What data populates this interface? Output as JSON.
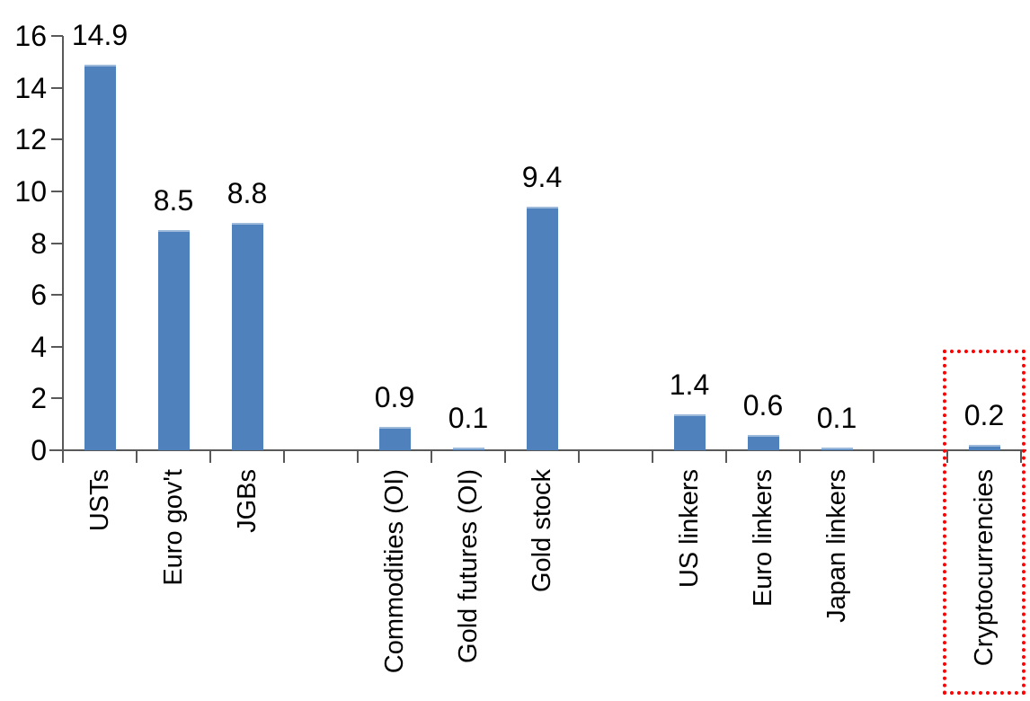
{
  "chart_data": {
    "type": "bar",
    "title": "",
    "xlabel": "",
    "ylabel": "",
    "categories": [
      "USTs",
      "Euro gov't",
      "JGBs",
      "Commodities (OI)",
      "Gold futures (OI)",
      "Gold stock",
      "US linkers",
      "Euro linkers",
      "Japan linkers",
      "Cryptocurrencies"
    ],
    "values": [
      14.9,
      8.5,
      8.8,
      0.9,
      0.1,
      9.4,
      1.4,
      0.6,
      0.1,
      0.2
    ],
    "value_labels": [
      "14.9",
      "8.5",
      "8.8",
      "0.9",
      "0.1",
      "9.4",
      "1.4",
      "0.6",
      "0.1",
      "0.2"
    ],
    "slots": [
      0,
      1,
      2,
      4,
      5,
      6,
      8,
      9,
      10,
      12
    ],
    "total_slots": 13,
    "yticks": [
      0,
      2,
      4,
      6,
      8,
      10,
      12,
      14,
      16
    ],
    "ytick_labels": [
      "0",
      "2",
      "4",
      "6",
      "8",
      "10",
      "12",
      "14",
      "16"
    ],
    "ylim": [
      0,
      16
    ],
    "grid": false,
    "legend": false,
    "bar_color": "#4F81BD",
    "axis_color": "#595959",
    "text_color": "#000000",
    "highlight": {
      "category": "Cryptocurrencies",
      "style": "red-dotted-box",
      "color": "#FF0000"
    }
  }
}
